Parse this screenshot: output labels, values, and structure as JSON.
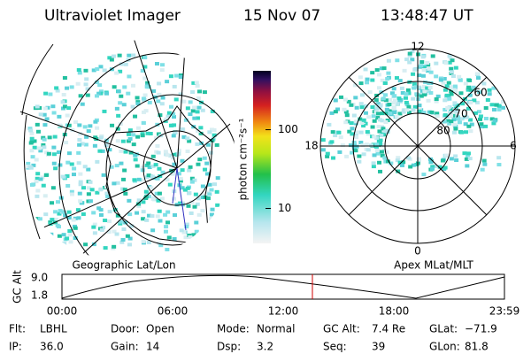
{
  "header": {
    "title": "Ultraviolet Imager",
    "date": "15 Nov 07",
    "time": "13:48:47 UT"
  },
  "colorbar": {
    "label": "photon cm⁻²s⁻¹",
    "lim": [
      3.6,
      560
    ],
    "ticks": [
      10,
      100
    ],
    "log": true
  },
  "panels": [
    {
      "label": "Geographic Lat/Lon"
    },
    {
      "label": "Apex MLat/MLT",
      "mlt_labels": [
        "12",
        "18",
        "6",
        "0"
      ],
      "lat_labels": [
        "60",
        "70",
        "80"
      ]
    }
  ],
  "timeline": {
    "ylabel": "GC Alt",
    "yticks": [
      {
        "value": 9.0,
        "label": "9.0"
      },
      {
        "value": 1.8,
        "label": "1.8"
      }
    ],
    "xticks": [
      "00:00",
      "06:00",
      "12:00",
      "18:00",
      "23:59"
    ]
  },
  "footer": {
    "rows": [
      [
        [
          "Flt:",
          "LBHL"
        ],
        [
          "Door:",
          "Open"
        ],
        [
          "Mode:",
          "Normal"
        ],
        [
          "GC Alt:",
          "7.4 Re"
        ],
        [
          "GLat:",
          "−71.9"
        ]
      ],
      [
        [
          "IP:",
          "36.0"
        ],
        [
          "Gain:",
          "14"
        ],
        [
          "Dsp:",
          "3.2"
        ],
        [
          "Seq:",
          "39"
        ],
        [
          "GLon:",
          "81.8"
        ]
      ]
    ]
  }
}
